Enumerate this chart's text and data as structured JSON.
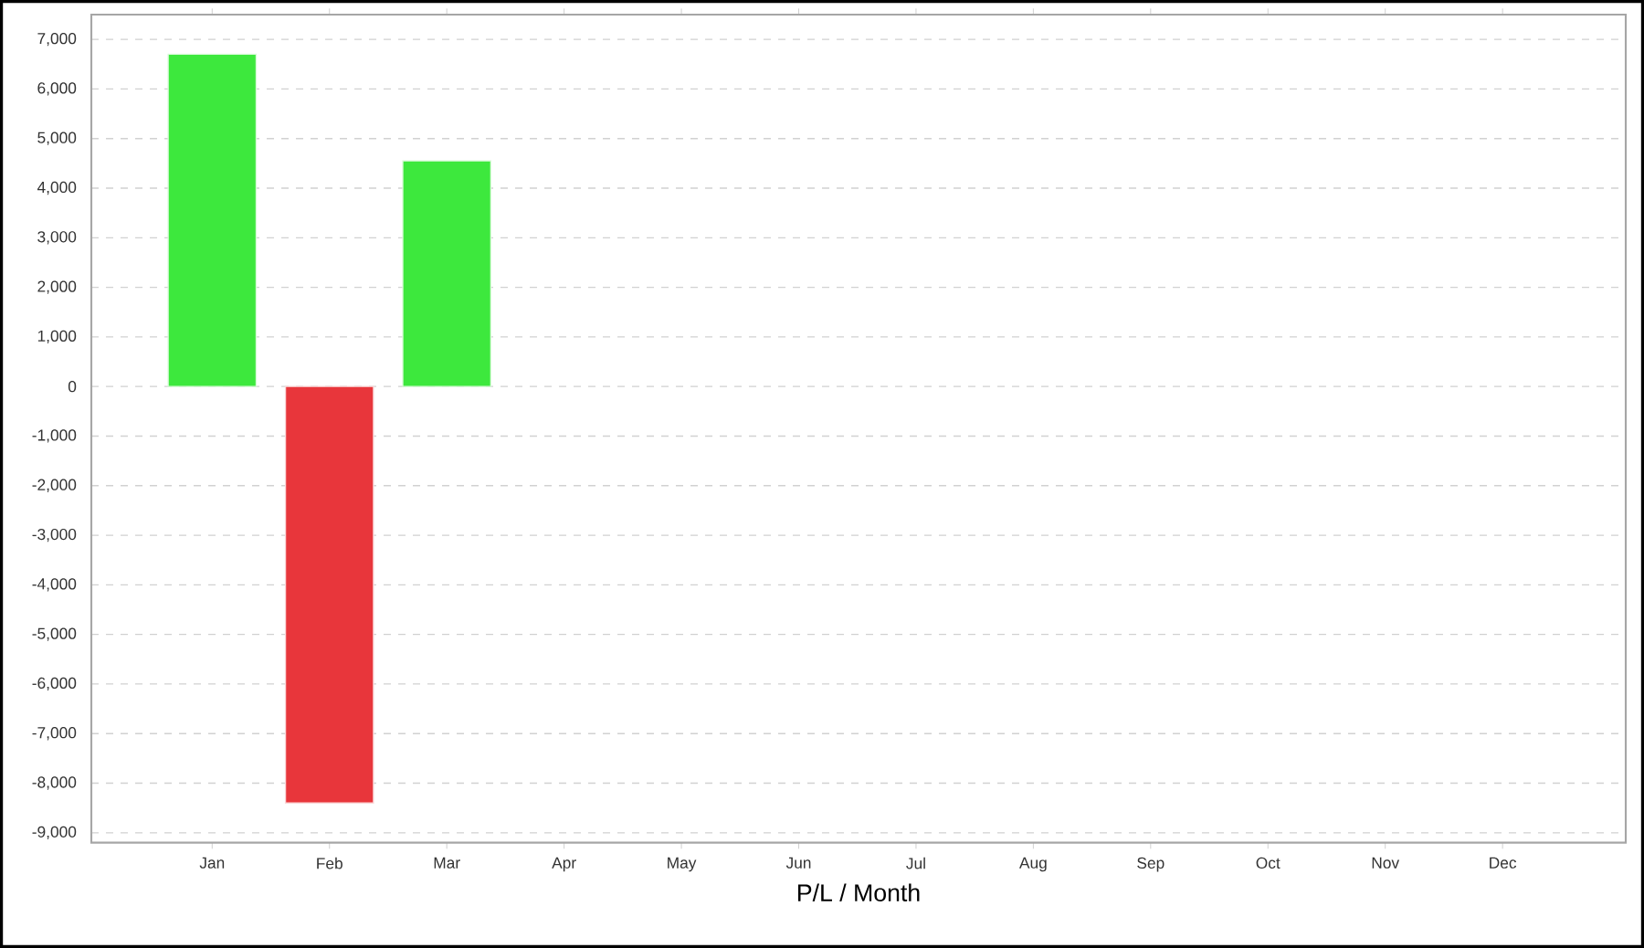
{
  "chart_data": {
    "type": "bar",
    "xlabel": "P/L / Month",
    "categories": [
      "Jan",
      "Feb",
      "Mar",
      "Apr",
      "May",
      "Jun",
      "Jul",
      "Aug",
      "Sep",
      "Oct",
      "Nov",
      "Dec"
    ],
    "values": [
      6700,
      -8400,
      4550,
      null,
      null,
      null,
      null,
      null,
      null,
      null,
      null,
      null
    ],
    "colors": [
      "#3de83d",
      "#e8363b",
      "#3de83d",
      null,
      null,
      null,
      null,
      null,
      null,
      null,
      null,
      null
    ],
    "ylim": [
      -9200,
      7500
    ],
    "yticks": [
      {
        "value": -9000,
        "label": "-9,000"
      },
      {
        "value": -8000,
        "label": "-8,000"
      },
      {
        "value": -7000,
        "label": "-7,000"
      },
      {
        "value": -6000,
        "label": "-6,000"
      },
      {
        "value": -5000,
        "label": "-5,000"
      },
      {
        "value": -4000,
        "label": "-4,000"
      },
      {
        "value": -3000,
        "label": "-3,000"
      },
      {
        "value": -2000,
        "label": "-2,000"
      },
      {
        "value": -1000,
        "label": "-1,000"
      },
      0,
      {
        "value": 1000,
        "label": "1,000"
      },
      {
        "value": 2000,
        "label": "2,000"
      },
      {
        "value": 3000,
        "label": "3,000"
      },
      {
        "value": 4000,
        "label": "4,000"
      },
      {
        "value": 5000,
        "label": "5,000"
      },
      {
        "value": 6000,
        "label": "6,000"
      },
      {
        "value": 7000,
        "label": "7,000"
      }
    ],
    "grid": "y"
  }
}
